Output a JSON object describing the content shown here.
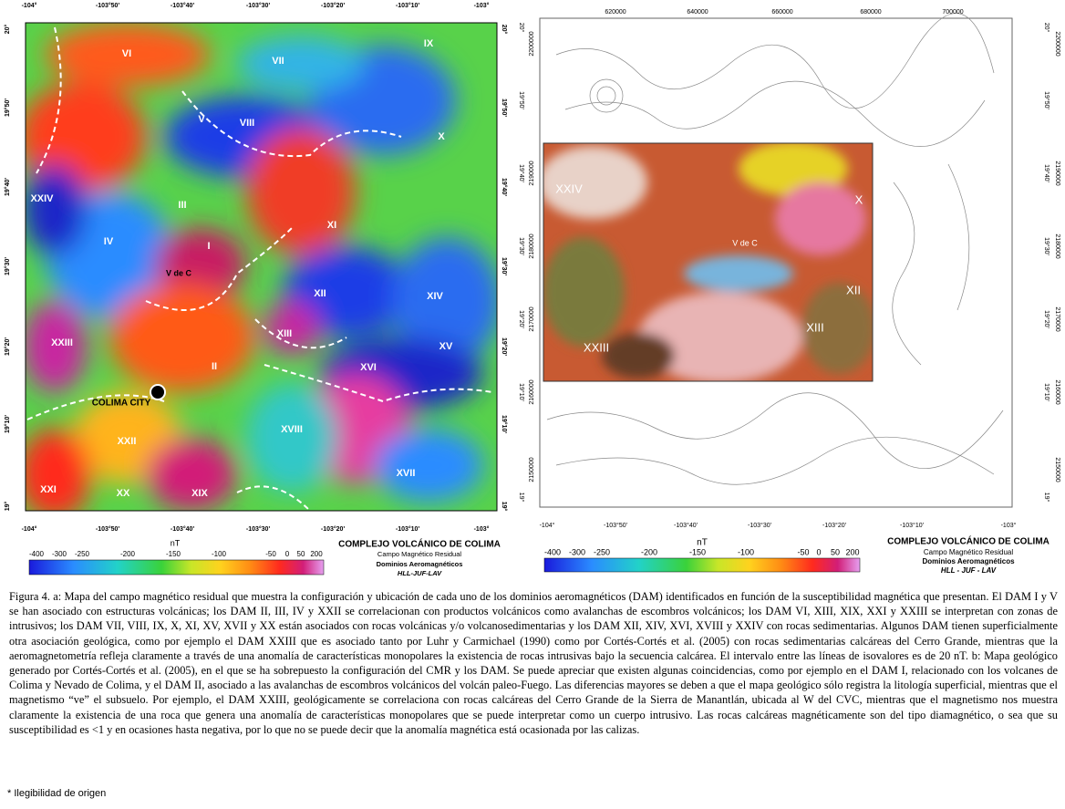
{
  "panel_a": {
    "lon_ticks": [
      "-104°",
      "-103°50'",
      "-103°40'",
      "-103°30'",
      "-103°20'",
      "-103°10'",
      "-103°"
    ],
    "lat_ticks": [
      "20°",
      "19°50'",
      "19°40'",
      "19°30'",
      "19°20'",
      "19°10'",
      "19°"
    ],
    "domains": [
      "VI",
      "VII",
      "IX",
      "V",
      "VIII",
      "X",
      "III",
      "XXIV",
      "IV",
      "XI",
      "I",
      "XII",
      "XIV",
      "XIII",
      "XV",
      "XXIII",
      "II",
      "XVI",
      "XXII",
      "XVIII",
      "XVII",
      "XXI",
      "XX",
      "XIX"
    ],
    "volcano": "V de C",
    "city": "COLIMA CITY",
    "colorbar_unit": "nT",
    "colorbar_labels": [
      "-400",
      "-300",
      "-250",
      "-200",
      "-150",
      "-100",
      "-50",
      "0",
      "50",
      "200"
    ],
    "title": "COMPLEJO VOLCÁNICO DE COLIMA",
    "subtitle": "Campo Magnético Residual",
    "legend_name": "Dominios Aeromagnéticos",
    "authors": "HLL-JUF-LAV"
  },
  "panel_b": {
    "utm_x_ticks": [
      "620000",
      "640000",
      "660000",
      "680000",
      "700000"
    ],
    "utm_y_ticks": [
      "2200000",
      "2190000",
      "2180000",
      "2170000",
      "2160000",
      "2150000"
    ],
    "lon_ticks": [
      "-104°",
      "-103°50'",
      "-103°40'",
      "-103°30'",
      "-103°20'",
      "-103°10'",
      "-103°"
    ],
    "lat_ticks": [
      "20°",
      "19°50'",
      "19°40'",
      "19°30'",
      "19°20'",
      "19°10'",
      "19°"
    ],
    "domains": [
      "XXIV",
      "X",
      "XII",
      "XIII",
      "XXIII"
    ],
    "volcano": "V de C",
    "colorbar_unit": "nT",
    "colorbar_labels": [
      "-400",
      "-300",
      "-250",
      "-200",
      "-150",
      "-100",
      "-50",
      "0",
      "50",
      "200"
    ],
    "title": "COMPLEJO VOLCÁNICO DE COLIMA",
    "subtitle": "Campo Magnético Residual",
    "legend_name": "Dominios Aeromagnéticos",
    "authors": "HLL - JUF - LAV"
  },
  "caption": "Figura 4. a: Mapa del campo magnético residual que muestra la configuración y ubicación de cada uno de los dominios aeromagnéticos (DAM) identificados en función de la susceptibilidad magnética que presentan. El DAM I y V se han asociado con estructuras volcánicas; los DAM II, III, IV y XXII se correlacionan con productos volcánicos como avalanchas de escombros volcánicos; los DAM VI, XIII, XIX, XXI y XXIII se interpretan con zonas de intrusivos; los DAM VII, VIII, IX, X, XI, XV, XVII y XX están asociados con rocas volcánicas y/o volcanosedimentarias y los DAM XII, XIV, XVI, XVIII y XXIV con rocas sedimentarias. Algunos DAM tienen superficialmente otra asociación geológica, como por ejemplo el DAM XXIII que es asociado tanto por Luhr y Carmichael (1990) como por Cortés-Cortés et al. (2005) con rocas sedimentarias calcáreas del Cerro Grande, mientras que la aeromagnetometría refleja claramente a través de una anomalía de características monopolares la existencia de rocas intrusivas bajo la secuencia calcárea. El intervalo entre las líneas de isovalores es de 20 nT. b: Mapa geológico generado por Cortés-Cortés et al. (2005), en el que se ha sobrepuesto la configuración del CMR y los DAM. Se puede apreciar que existen algunas coincidencias, como por ejemplo en el DAM I, relacionado con los volcanes de Colima y Nevado de Colima, y el DAM II, asociado a las avalanchas de escombros volcánicos del volcán paleo-Fuego. Las diferencias mayores se deben a que el mapa geológico sólo registra la litología superficial, mientras que el magnetismo “ve” el subsuelo. Por ejemplo, el DAM XXIII, geológicamente se correlaciona con rocas calcáreas del Cerro Grande de la Sierra de Manantlán, ubicada al W del CVC, mientras que el magnetismo nos muestra claramente la existencia de una roca que genera una anomalía de características monopolares que se puede interpretar como un cuerpo intrusivo. Las rocas calcáreas magnéticamente son del tipo diamagnético, o sea que su susceptibilidad es <1 y en ocasiones hasta negativa, por lo que no se puede decir que la anomalía magnética está ocasionada por las calizas.",
  "footnote": "* Ilegibilidad de origen"
}
